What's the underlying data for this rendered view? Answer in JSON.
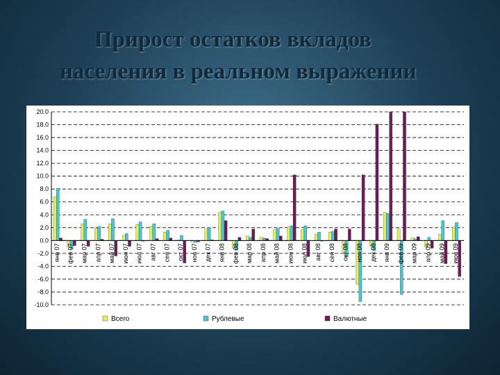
{
  "slide": {
    "title_line1": "Прирост остатков вкладов",
    "title_line2": "населения в реальном выражении"
  },
  "chart_data": {
    "type": "bar",
    "title": "Прирост остатков вкладов населения в реальном выражении",
    "ylim": [
      -10,
      20
    ],
    "yticks": [
      "20.0",
      "18.0",
      "16.0",
      "14.0",
      "12.0",
      "10.0",
      "8.0",
      "6.0",
      "4.0",
      "2.0",
      "0.0",
      "-2.0",
      "-4.0",
      "-6.0",
      "-8.0",
      "-10.0"
    ],
    "grid": true,
    "legend_position": "bottom",
    "categories": [
      "янв 07",
      "фев 07",
      "мар 07",
      "апр 07",
      "май 07",
      "июн 07",
      "июл 07",
      "авг 07",
      "сен 07",
      "окт 07",
      "ноя 07",
      "дек 07",
      "янв 08",
      "фев 08",
      "мар 08",
      "апр 08",
      "май 08",
      "июн 08",
      "июл 08",
      "авг 08",
      "сен 08",
      "окт 08",
      "ноя 08",
      "дек 08",
      "янв 09",
      "фев 09",
      "мар 09",
      "апр 09",
      "май 09",
      "июн 09"
    ],
    "series": [
      {
        "name": "Всего",
        "color": "#e3ef5a",
        "values": [
          6.8,
          -1.0,
          2.6,
          1.9,
          2.6,
          0.8,
          2.5,
          2.2,
          1.3,
          0.1,
          -0.2,
          1.8,
          4.4,
          -1.2,
          0.7,
          0.5,
          1.7,
          2.1,
          1.7,
          1.0,
          1.3,
          -1.8,
          -6.8,
          -0.9,
          4.4,
          1.8,
          0.4,
          -1.0,
          1.0,
          2.1
        ]
      },
      {
        "name": "Рублевые",
        "color": "#45c7d4",
        "values": [
          8.1,
          -1.3,
          3.3,
          2.2,
          3.4,
          1.1,
          2.9,
          2.6,
          1.6,
          0.8,
          -0.3,
          2.0,
          4.6,
          -1.5,
          0.5,
          0.4,
          1.9,
          2.3,
          2.3,
          1.3,
          1.4,
          -2.5,
          -9.5,
          -1.6,
          4.2,
          -8.4,
          0.3,
          0.5,
          3.1,
          2.8
        ]
      },
      {
        "name": "Валютные",
        "color": "#6b1d57",
        "values": [
          0.4,
          -0.8,
          -0.9,
          0.2,
          -2.4,
          -0.9,
          -0.1,
          0.3,
          0.4,
          -3.5,
          -0.2,
          0.1,
          3.1,
          0.5,
          1.8,
          0.3,
          0.7,
          10.2,
          -2.5,
          -0.1,
          1.8,
          1.8,
          10.2,
          18.1,
          20.0,
          20.0,
          0.6,
          -1.2,
          -3.6,
          -5.6
        ]
      }
    ]
  }
}
